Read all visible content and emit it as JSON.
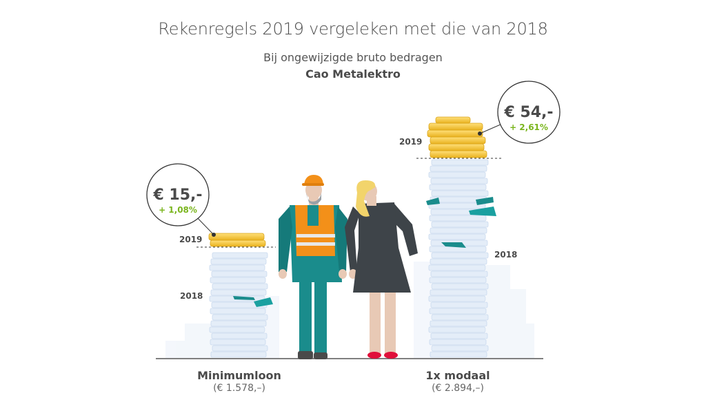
{
  "header": {
    "title": "Rekenregels 2019 vergeleken met die van 2018",
    "subtitle": "Bij ongewijzigde bruto bedragen",
    "subtitle2": "Cao Metalektro"
  },
  "left": {
    "category": "Minimumloon",
    "gross": "(€ 1.578,–)",
    "amount": "€ 15,-",
    "percent": "+ 1,08%",
    "label_2019": "2019",
    "label_2018": "2018"
  },
  "right": {
    "category": "1x modaal",
    "gross": "(€ 2.894,–)",
    "amount": "€ 54,-",
    "percent": "+ 2,61%",
    "label_2019": "2019",
    "label_2018": "2018"
  },
  "colors": {
    "gold": "#f2c12e",
    "coin_stack": "#dde8f5",
    "accent_green": "#7ab51d",
    "teal": "#1a8c8c",
    "orange_vest": "#f39019"
  }
}
